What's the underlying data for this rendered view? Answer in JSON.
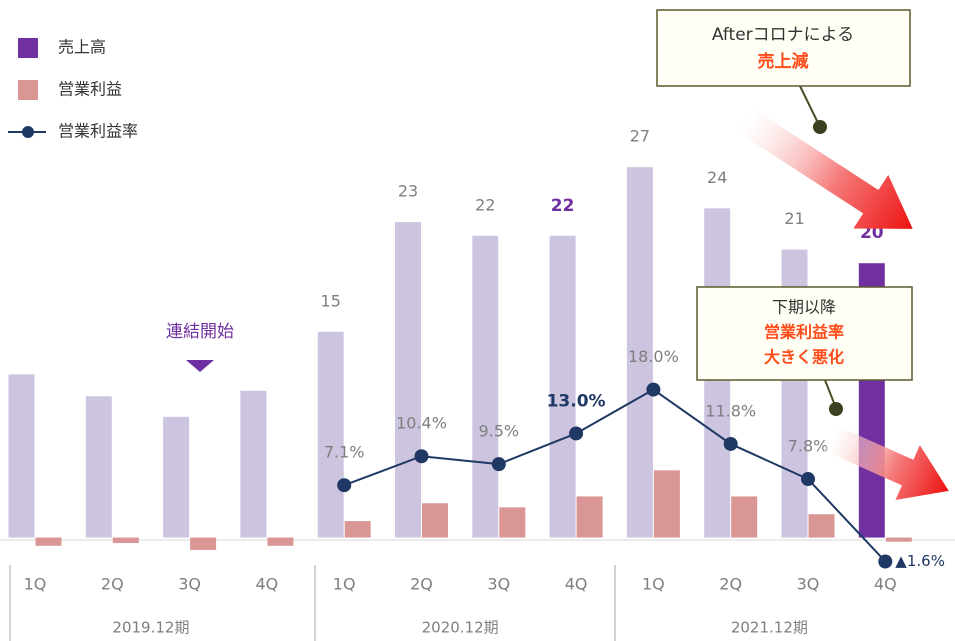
{
  "chart_data": {
    "type": "bar-line",
    "legend_position": "upper left",
    "categories": [
      "1Q",
      "2Q",
      "3Q",
      "4Q",
      "1Q",
      "2Q",
      "3Q",
      "4Q",
      "1Q",
      "2Q",
      "3Q",
      "4Q"
    ],
    "groups": [
      "2019.12期",
      "2020.12期",
      "2021.12期"
    ],
    "ylim": [
      -2,
      37
    ],
    "y2lim": [
      -2,
      59
    ],
    "series": [
      {
        "name": "売上高",
        "type": "bar",
        "color": "#7030a0",
        "bar_colors": [
          "#cdc5df",
          "#cdc5df",
          "#cdc5df",
          "#cdc5df",
          "#cdc5df",
          "#cdc5df",
          "#cdc5df",
          "#cdc5df",
          "#cdc5df",
          "#cdc5df",
          "#cdc5df",
          "#7030a0"
        ],
        "values": [
          11.9,
          10.3,
          8.8,
          10.7,
          15,
          23,
          22,
          22,
          27,
          24,
          21,
          20
        ],
        "value_labels": [
          null,
          null,
          null,
          null,
          "15",
          "23",
          "22",
          "22",
          "27",
          "24",
          "21",
          "20"
        ],
        "bold_labels": [
          7,
          11
        ]
      },
      {
        "name": "営業利益",
        "type": "bar",
        "color": "#d99694",
        "values": [
          -0.6,
          -0.4,
          -0.9,
          -0.6,
          1.2,
          2.5,
          2.2,
          3.0,
          4.9,
          3.0,
          1.7,
          -0.3
        ]
      },
      {
        "name": "営業利益率",
        "type": "line",
        "axis": "y2",
        "color": "#1f3864",
        "values": [
          null,
          null,
          null,
          null,
          7.1,
          10.4,
          9.5,
          13.0,
          18.0,
          11.8,
          7.8,
          -1.6
        ],
        "value_labels": [
          null,
          null,
          null,
          null,
          "7.1%",
          "10.4%",
          "9.5%",
          "13.0%",
          "18.0%",
          "11.8%",
          "7.8%",
          "▲1.6%"
        ],
        "bold_labels": [
          7
        ]
      }
    ],
    "annotations": {
      "start": "連結開始",
      "box1": [
        "Afterコロナによる",
        "売上減"
      ],
      "box2": [
        "下期以降",
        "営業利益率",
        "大きく悪化"
      ]
    }
  }
}
